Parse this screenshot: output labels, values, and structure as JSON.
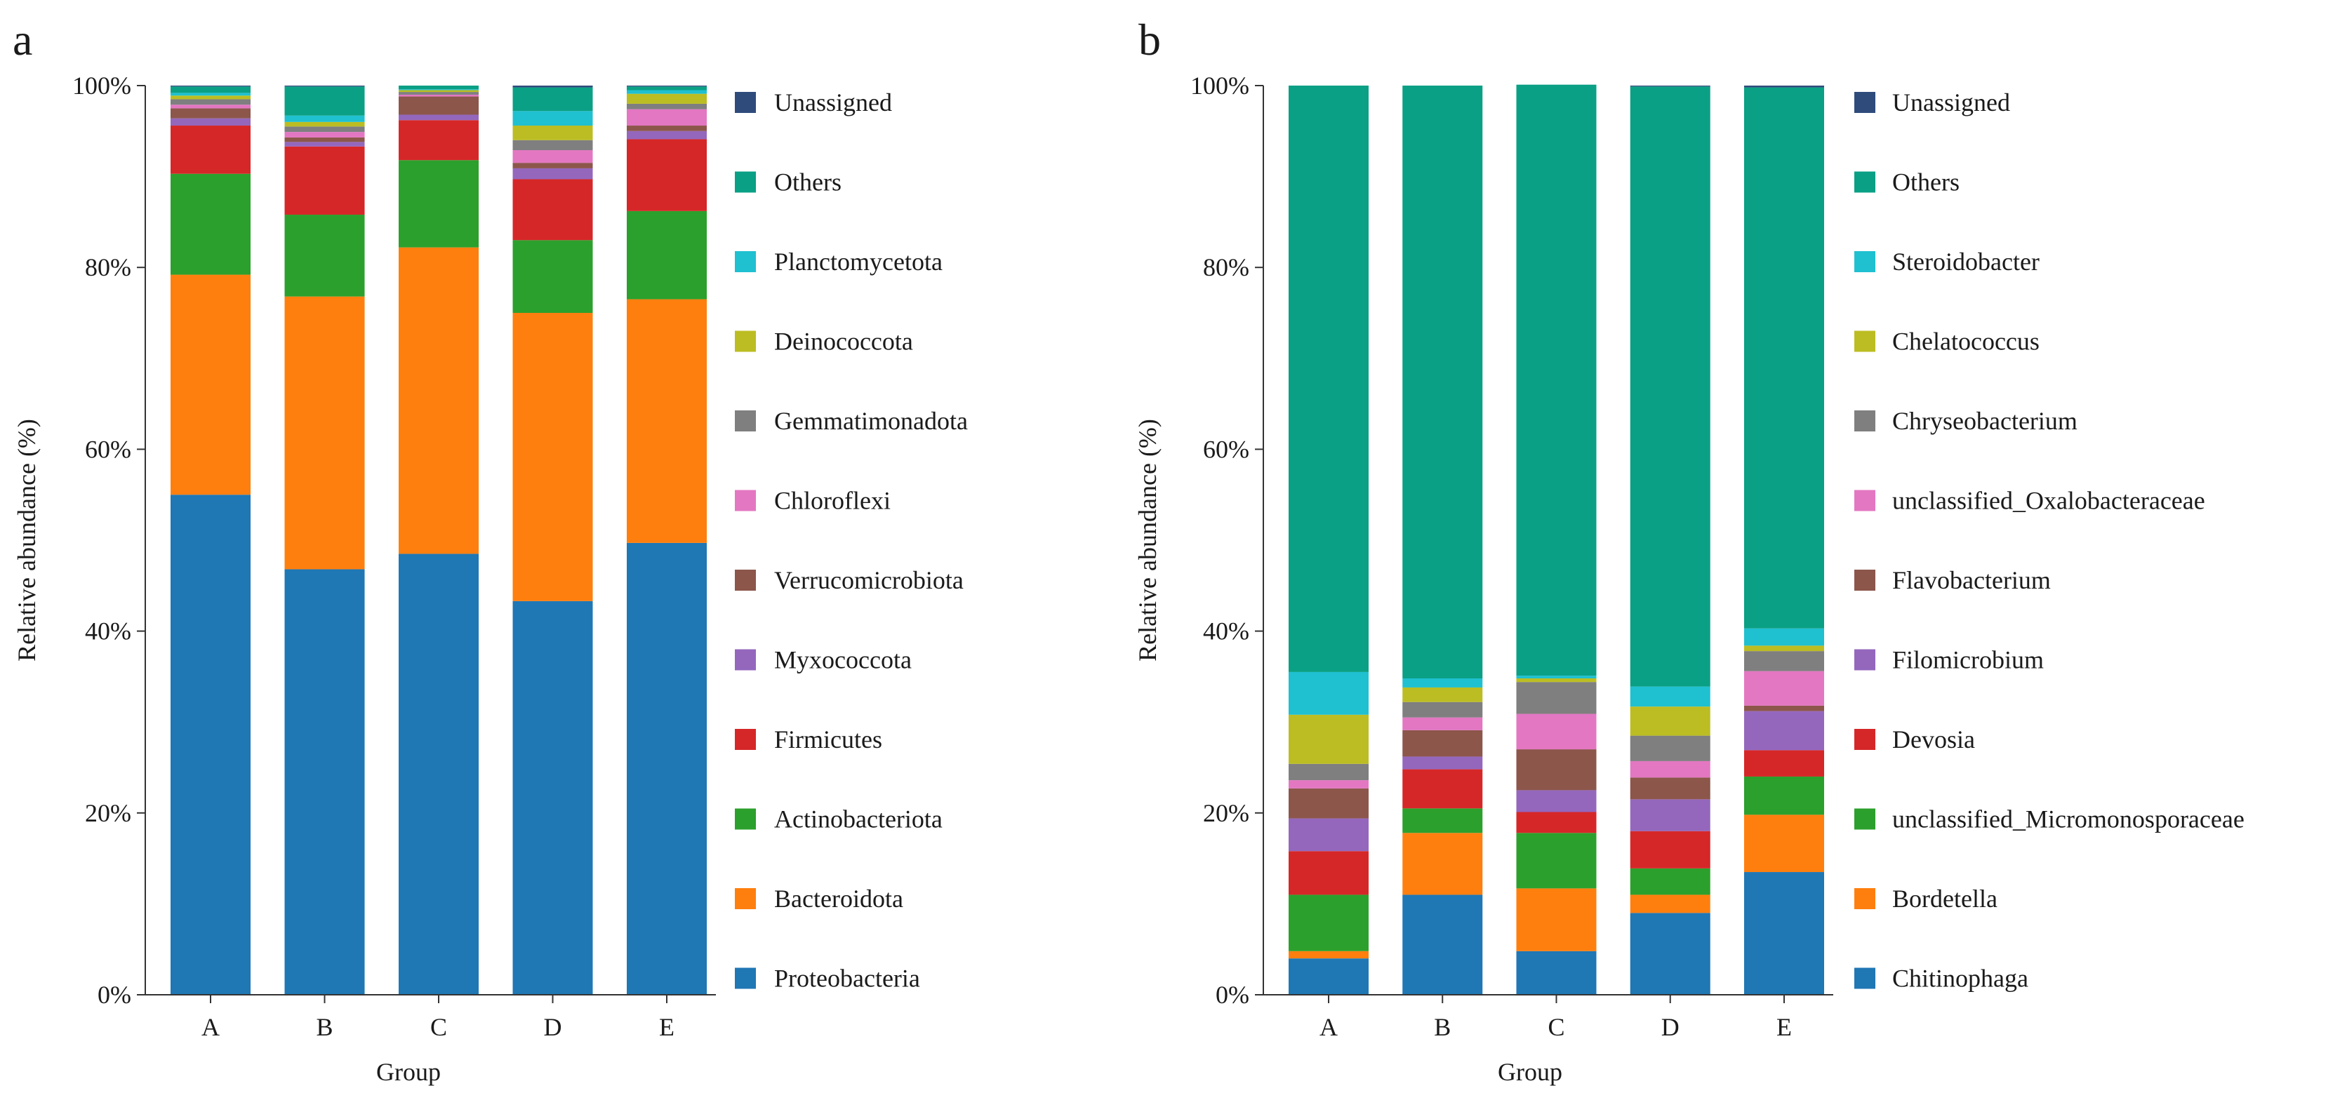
{
  "colors": {
    "Unassigned": "#2f4b7c",
    "Others": "#0aa085",
    "c3": "#1fc0d0",
    "c4": "#bcbd22",
    "c5": "#7f7f7f",
    "c6": "#e377c2",
    "c7": "#8c564b",
    "c8": "#9467bd",
    "c9": "#d62728",
    "c10": "#2ca02c",
    "c11": "#ff7f0e",
    "c12": "#1f77b4"
  },
  "chart_data": [
    {
      "type": "bar",
      "stacked": true,
      "panel_label": "a",
      "title": "",
      "xlabel": "Group",
      "ylabel": "Relative abundance (%)",
      "ylim": [
        0,
        100
      ],
      "ytick_labels": [
        "0%",
        "20%",
        "40%",
        "60%",
        "80%",
        "100%"
      ],
      "categories": [
        "A",
        "B",
        "C",
        "D",
        "E"
      ],
      "series": [
        {
          "name": "Proteobacteria",
          "color_key": "c12",
          "values": [
            55.0,
            46.8,
            48.5,
            43.3,
            49.7
          ]
        },
        {
          "name": "Bacteroidota",
          "color_key": "c11",
          "values": [
            24.2,
            30.0,
            33.7,
            31.7,
            26.8
          ]
        },
        {
          "name": "Actinobacteriota",
          "color_key": "c10",
          "values": [
            11.1,
            9.0,
            9.6,
            8.0,
            9.7
          ]
        },
        {
          "name": "Firmicutes",
          "color_key": "c9",
          "values": [
            5.3,
            7.5,
            4.4,
            6.7,
            7.9
          ]
        },
        {
          "name": "Myxococcota",
          "color_key": "c8",
          "values": [
            0.8,
            0.5,
            0.6,
            1.2,
            0.9
          ]
        },
        {
          "name": "Verrucomicrobiota",
          "color_key": "c7",
          "values": [
            1.1,
            0.5,
            2.0,
            0.6,
            0.6
          ]
        },
        {
          "name": "Chloroflexi",
          "color_key": "c6",
          "values": [
            0.4,
            0.6,
            0.2,
            1.4,
            1.8
          ]
        },
        {
          "name": "Gemmatimonadota",
          "color_key": "c5",
          "values": [
            0.6,
            0.6,
            0.3,
            1.1,
            0.6
          ]
        },
        {
          "name": "Deinococcota",
          "color_key": "c4",
          "values": [
            0.4,
            0.5,
            0.2,
            1.6,
            1.1
          ]
        },
        {
          "name": "Planctomycetota",
          "color_key": "c3",
          "values": [
            0.3,
            0.7,
            0.1,
            1.6,
            0.4
          ]
        },
        {
          "name": "Others",
          "color_key": "Others",
          "values": [
            0.7,
            3.2,
            0.4,
            2.6,
            0.4
          ]
        },
        {
          "name": "Unassigned",
          "color_key": "Unassigned",
          "values": [
            0.1,
            0.1,
            0.0,
            0.2,
            0.1
          ]
        }
      ],
      "legend_position": "right"
    },
    {
      "type": "bar",
      "stacked": true,
      "panel_label": "b",
      "title": "",
      "xlabel": "Group",
      "ylabel": "Relative abundance (%)",
      "ylim": [
        0,
        100
      ],
      "ytick_labels": [
        "0%",
        "20%",
        "40%",
        "60%",
        "80%",
        "100%"
      ],
      "categories": [
        "A",
        "B",
        "C",
        "D",
        "E"
      ],
      "series": [
        {
          "name": "Chitinophaga",
          "color_key": "c12",
          "values": [
            4.0,
            11.0,
            4.8,
            9.0,
            13.5
          ]
        },
        {
          "name": "Bordetella",
          "color_key": "c11",
          "values": [
            0.8,
            6.8,
            6.9,
            2.0,
            6.3
          ]
        },
        {
          "name": "unclassified_Micromonosporaceae",
          "color_key": "c10",
          "values": [
            6.2,
            2.7,
            6.1,
            2.9,
            4.2
          ]
        },
        {
          "name": "Devosia",
          "color_key": "c9",
          "values": [
            4.8,
            4.3,
            2.3,
            4.1,
            2.9
          ]
        },
        {
          "name": "Filomicrobium",
          "color_key": "c8",
          "values": [
            3.6,
            1.4,
            2.4,
            3.5,
            4.3
          ]
        },
        {
          "name": "Flavobacterium",
          "color_key": "c7",
          "values": [
            3.3,
            2.9,
            4.5,
            2.4,
            0.6
          ]
        },
        {
          "name": "unclassified_Oxalobacteraceae",
          "color_key": "c6",
          "values": [
            0.9,
            1.4,
            3.9,
            1.8,
            3.8
          ]
        },
        {
          "name": "Chryseobacterium",
          "color_key": "c5",
          "values": [
            1.8,
            1.7,
            3.5,
            2.8,
            2.2
          ]
        },
        {
          "name": "Chelatococcus",
          "color_key": "c4",
          "values": [
            5.4,
            1.6,
            0.4,
            3.2,
            0.6
          ]
        },
        {
          "name": "Steroidobacter",
          "color_key": "c3",
          "values": [
            4.7,
            1.0,
            0.3,
            2.2,
            1.9
          ]
        },
        {
          "name": "Others",
          "color_key": "Others",
          "values": [
            64.5,
            65.2,
            65.0,
            66.0,
            59.5
          ]
        },
        {
          "name": "Unassigned",
          "color_key": "Unassigned",
          "values": [
            0.0,
            0.0,
            0.0,
            0.1,
            0.2
          ]
        }
      ],
      "legend_position": "right"
    }
  ]
}
